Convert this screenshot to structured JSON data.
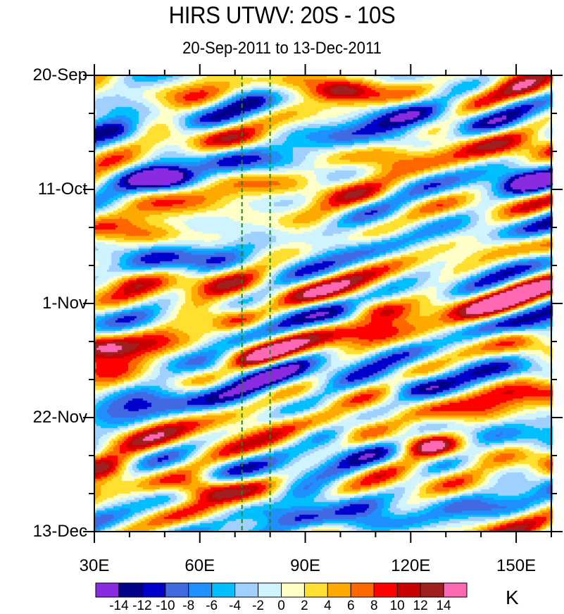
{
  "chart_data": {
    "type": "heatmap",
    "subtype": "filled-contour hovmoller",
    "title": "HIRS UTWV: 20S - 10S",
    "subtitle": "20-Sep-2011 to 13-Dec-2011",
    "xlabel": "",
    "ylabel": "",
    "x_axis": {
      "range": [
        30,
        160
      ],
      "units": "degrees East",
      "ticks": [
        30,
        60,
        90,
        120,
        150
      ],
      "tick_labels": [
        "30E",
        "60E",
        "90E",
        "120E",
        "150E"
      ],
      "minor_tick_step": 10
    },
    "y_axis": {
      "range_days": [
        0,
        84
      ],
      "direction": "time increases downward",
      "ticks_days": [
        0,
        21,
        42,
        63,
        84
      ],
      "tick_labels": [
        "20-Sep",
        "11-Oct",
        "1-Nov",
        "22-Nov",
        "13-Dec"
      ],
      "minor_tick_step_days": 7
    },
    "reference_lines": [
      {
        "x": 72,
        "style": "dashed",
        "color": "#1a8a1a"
      },
      {
        "x": 80,
        "style": "dashed",
        "color": "#1a8a1a"
      }
    ],
    "colorbar": {
      "units": "K",
      "placement": "bottom",
      "levels": [
        -14,
        -12,
        -10,
        -8,
        -6,
        -4,
        -2,
        0,
        2,
        4,
        6,
        8,
        10,
        12,
        14
      ],
      "level_labels": [
        "-14",
        "-12",
        "-10",
        "-8",
        "-6",
        "-4",
        "-2",
        "0",
        "2",
        "4",
        "6",
        "8",
        "10",
        "12",
        "14"
      ],
      "colors": [
        "#8a2be2",
        "#00008b",
        "#0000cd",
        "#4169e1",
        "#1e90ff",
        "#00bfff",
        "#a0d0ff",
        "#d0f4ff",
        "#ffffc8",
        "#ffe030",
        "#ffaa00",
        "#ff6600",
        "#ff0000",
        "#c80000",
        "#a02020",
        "#ff69b4"
      ]
    },
    "features": [
      {
        "lon": 100,
        "day": 3,
        "value": 10,
        "kind": "warm anomaly"
      },
      {
        "lon": 155,
        "day": 3,
        "value": 9,
        "kind": "warm anomaly"
      },
      {
        "lon": 75,
        "day": 5,
        "value": -8,
        "kind": "cold anomaly"
      },
      {
        "lon": 36,
        "day": 10,
        "value": -10,
        "kind": "cold anomaly"
      },
      {
        "lon": 120,
        "day": 12,
        "value": -8,
        "kind": "cold anomaly"
      },
      {
        "lon": 50,
        "day": 19,
        "value": -14,
        "kind": "cold anomaly"
      },
      {
        "lon": 155,
        "day": 20,
        "value": -14,
        "kind": "cold anomaly"
      },
      {
        "lon": 40,
        "day": 38,
        "value": 9,
        "kind": "warm anomaly"
      },
      {
        "lon": 110,
        "day": 43,
        "value": 12,
        "kind": "warm anomaly"
      },
      {
        "lon": 70,
        "day": 45,
        "value": 9,
        "kind": "warm anomaly"
      },
      {
        "lon": 31,
        "day": 50,
        "value": 14,
        "kind": "warm anomaly"
      },
      {
        "lon": 148,
        "day": 48,
        "value": 9,
        "kind": "warm anomaly"
      },
      {
        "lon": 66,
        "day": 54,
        "value": -9,
        "kind": "cold anomaly"
      },
      {
        "lon": 120,
        "day": 57,
        "value": -7,
        "kind": "cold anomaly"
      },
      {
        "lon": 125,
        "day": 68,
        "value": 12,
        "kind": "warm anomaly"
      },
      {
        "lon": 95,
        "day": 66,
        "value": -10,
        "kind": "cold anomaly"
      },
      {
        "lon": 60,
        "day": 76,
        "value": 11,
        "kind": "warm anomaly"
      },
      {
        "lon": 31,
        "day": 72,
        "value": 9,
        "kind": "warm anomaly"
      },
      {
        "lon": 90,
        "day": 77,
        "value": -10,
        "kind": "cold anomaly"
      },
      {
        "lon": 105,
        "day": 79,
        "value": -9,
        "kind": "cold anomaly"
      }
    ]
  }
}
